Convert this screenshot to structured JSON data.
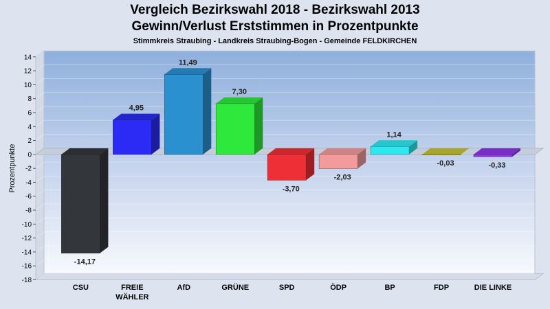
{
  "chart_data": {
    "type": "bar",
    "title": "Vergleich Bezirkswahl 2018 - Bezirkswahl 2013",
    "title2": "Gewinn/Verlust Erststimmen in Prozentpunkte",
    "subtitle": "Stimmkreis Straubing - Landkreis Straubing-Bogen - Gemeinde FELDKIRCHEN",
    "ylabel": "Prozentpunkte",
    "xlabel": "",
    "ylim": [
      -18,
      14
    ],
    "ytick_step": 2,
    "grid": true,
    "categories": [
      "CSU",
      "FREIE WÄHLER",
      "AfD",
      "GRÜNE",
      "SPD",
      "ÖDP",
      "BP",
      "FDP",
      "DIE LINKE"
    ],
    "category_lines": [
      [
        "CSU"
      ],
      [
        "FREIE",
        "WÄHLER"
      ],
      [
        "AfD"
      ],
      [
        "GRÜNE"
      ],
      [
        "SPD"
      ],
      [
        "ÖDP"
      ],
      [
        "BP"
      ],
      [
        "FDP"
      ],
      [
        "DIE LINKE"
      ]
    ],
    "values": [
      -14.17,
      4.95,
      11.49,
      7.3,
      -3.7,
      -2.03,
      1.14,
      -0.03,
      -0.33
    ],
    "value_labels": [
      "-14,17",
      "4,95",
      "11,49",
      "7,30",
      "-3,70",
      "-2,03",
      "1,14",
      "-0,03",
      "-0,33"
    ],
    "colors": [
      "#33363b",
      "#2b2bf5",
      "#2a90d0",
      "#2ee83c",
      "#ee2f35",
      "#f29a9c",
      "#2ee8f0",
      "#c7c234",
      "#8d36e4"
    ]
  }
}
